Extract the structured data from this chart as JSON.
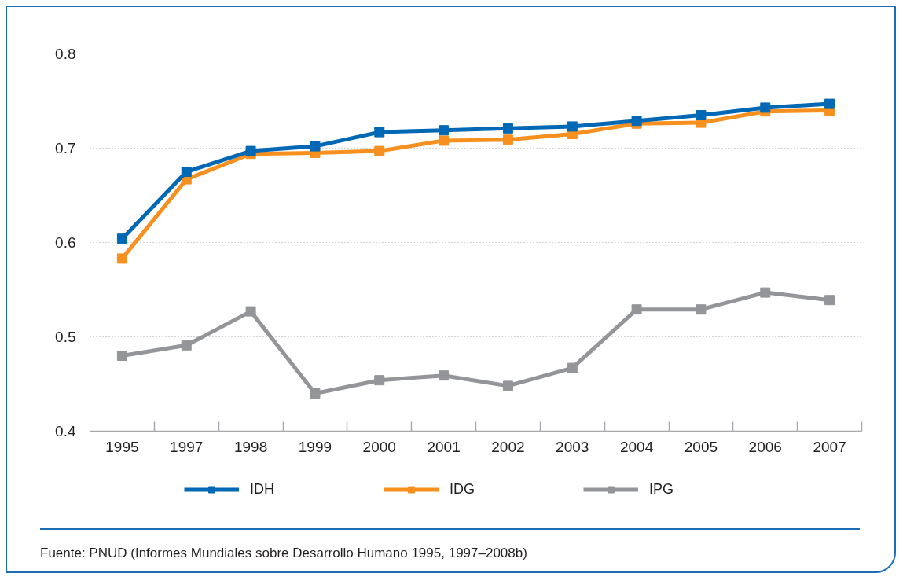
{
  "chart_data": {
    "type": "line",
    "categories": [
      "1995",
      "1997",
      "1998",
      "1999",
      "2000",
      "2001",
      "2002",
      "2003",
      "2004",
      "2005",
      "2006",
      "2007"
    ],
    "series": [
      {
        "name": "IDH",
        "color": "#0068b4",
        "values": [
          0.604,
          0.675,
          0.697,
          0.702,
          0.717,
          0.719,
          0.721,
          0.723,
          0.729,
          0.735,
          0.743,
          0.747
        ]
      },
      {
        "name": "IDG",
        "color": "#f7901e",
        "values": [
          0.583,
          0.667,
          0.694,
          0.695,
          0.697,
          0.708,
          0.709,
          0.715,
          0.726,
          0.727,
          0.739,
          0.74
        ]
      },
      {
        "name": "IPG",
        "color": "#939598",
        "values": [
          0.48,
          0.491,
          0.527,
          0.44,
          0.454,
          0.459,
          0.448,
          0.467,
          0.529,
          0.529,
          0.547,
          0.539
        ]
      }
    ],
    "ylim": [
      0.4,
      0.8
    ],
    "yticks": [
      0.4,
      0.5,
      0.6,
      0.7,
      0.8
    ],
    "grid": "y",
    "legend": "bottom",
    "marker": "square",
    "line_style": "solid",
    "annotations": [
      "Fuente: PNUD (Informes Mundiales sobre Desarrollo Humano 1995, 1997–2008b)"
    ]
  }
}
